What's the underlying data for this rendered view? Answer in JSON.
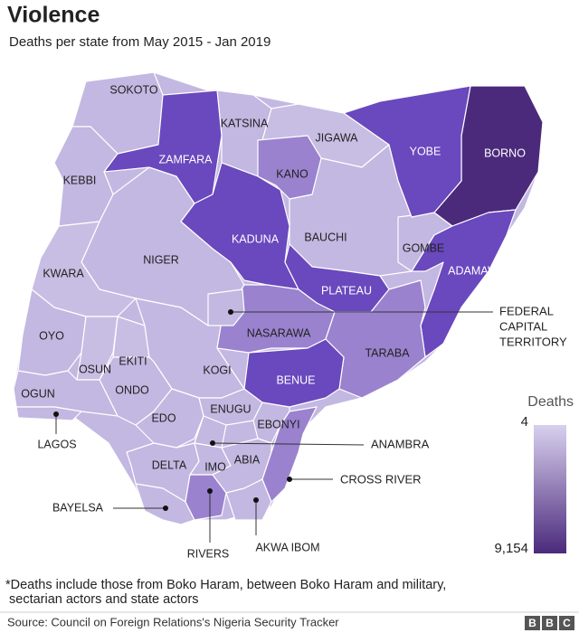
{
  "title": "Violence",
  "subtitle": "Deaths per state from May 2015 - Jan 2019",
  "states": [
    {
      "label": "SOKOTO",
      "color": "#c3b8e1"
    },
    {
      "label": "ZAMFARA",
      "color": "#6a48bd"
    },
    {
      "label": "KATSINA",
      "color": "#c3b8e1"
    },
    {
      "label": "JIGAWA",
      "color": "#c8bee3"
    },
    {
      "label": "YOBE",
      "color": "#6a48bd"
    },
    {
      "label": "BORNO",
      "color": "#4b2a7c"
    },
    {
      "label": "KANO",
      "color": "#9a82cf"
    },
    {
      "label": "KEBBI",
      "color": "#c3b8e1"
    },
    {
      "label": "KADUNA",
      "color": "#6a48bd"
    },
    {
      "label": "BAUCHI",
      "color": "#c3b8e1"
    },
    {
      "label": "GOMBE",
      "color": "#c3b8e1"
    },
    {
      "label": "ADAMAWA",
      "color": "#6a48bd"
    },
    {
      "label": "NIGER",
      "color": "#c3b8e1"
    },
    {
      "label": "KWARA",
      "color": "#c8bee3"
    },
    {
      "label": "PLATEAU",
      "color": "#6a48bd"
    },
    {
      "label": "NASARAWA",
      "color": "#9a82cf"
    },
    {
      "label": "TARABA",
      "color": "#9a82cf"
    },
    {
      "label": "OYO",
      "color": "#c3b8e1"
    },
    {
      "label": "OSUN",
      "color": "#c8bee3"
    },
    {
      "label": "EKITI",
      "color": "#c8bee3"
    },
    {
      "label": "KOGI",
      "color": "#c3b8e1"
    },
    {
      "label": "ONDO",
      "color": "#c3b8e1"
    },
    {
      "label": "OGUN",
      "color": "#c3b8e1"
    },
    {
      "label": "BENUE",
      "color": "#6a48bd"
    },
    {
      "label": "EDO",
      "color": "#c3b8e1"
    },
    {
      "label": "ENUGU",
      "color": "#c3b8e1"
    },
    {
      "label": "EBONYI",
      "color": "#c3b8e1"
    },
    {
      "label": "LAGOS",
      "color": "#c3b8e1"
    },
    {
      "label": "DELTA",
      "color": "#c3b8e1"
    },
    {
      "label": "IMO",
      "color": "#c3b8e1"
    },
    {
      "label": "ABIA",
      "color": "#c3b8e1"
    },
    {
      "label": "ANAMBRA",
      "color": "#c3b8e1"
    },
    {
      "label": "CROSS RIVER",
      "color": "#9a82cf"
    },
    {
      "label": "RIVERS",
      "color": "#9a82cf"
    },
    {
      "label": "AKWA IBOM",
      "color": "#c3b8e1"
    },
    {
      "label": "BAYELSA",
      "color": "#c3b8e1"
    },
    {
      "label_lines": [
        "FEDERAL",
        "CAPITAL",
        "TERRITORY"
      ],
      "color": "#c3b8e1"
    }
  ],
  "legend": {
    "title": "Deaths",
    "min": 4,
    "max": {
      "value": 9154,
      "label": "9,154"
    },
    "min_color": "#d8d0ee",
    "max_color": "#4b2a7c"
  },
  "footnote": [
    "*Deaths include those from Boko Haram, between Boko Haram and military,",
    "sectarian actors and state actors"
  ],
  "source": "Source: Council on Foreign Relations's Nigeria Security Tracker",
  "logo": [
    "B",
    "B",
    "C"
  ]
}
